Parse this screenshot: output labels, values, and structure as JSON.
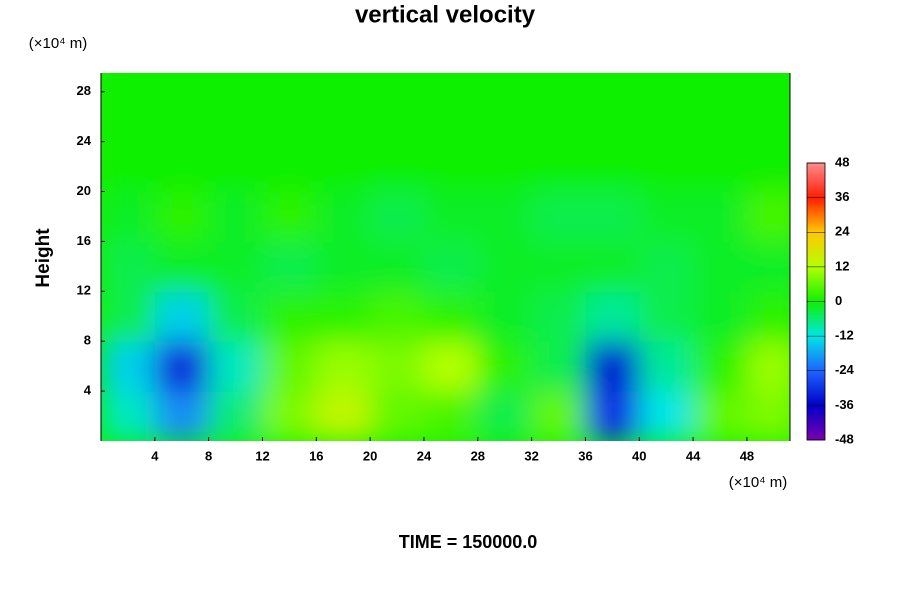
{
  "chart_data": {
    "type": "contour",
    "title": "vertical velocity",
    "y_label": "Height",
    "y_unit": "(×10⁴ m)",
    "x_unit": "(×10⁴ m)",
    "footer": "TIME = 150000.0",
    "xlim": [
      0,
      51.2
    ],
    "ylim": [
      0,
      29.5
    ],
    "xticks": [
      4,
      8,
      12,
      16,
      20,
      24,
      28,
      32,
      36,
      40,
      44,
      48
    ],
    "yticks": [
      4,
      8,
      12,
      16,
      20,
      24,
      28
    ],
    "x": [
      2,
      6,
      10,
      14,
      18,
      22,
      26,
      30,
      34,
      38,
      42,
      46,
      50
    ],
    "y": [
      2,
      6,
      10,
      14,
      18,
      22,
      26,
      30
    ],
    "z": [
      [
        -10,
        -20,
        -6,
        8,
        14,
        6,
        4,
        -4,
        6,
        -30,
        -12,
        6,
        8
      ],
      [
        -14,
        -32,
        -10,
        6,
        10,
        8,
        12,
        2,
        -4,
        -34,
        -8,
        2,
        10
      ],
      [
        -4,
        -14,
        -4,
        2,
        2,
        4,
        2,
        -2,
        -4,
        -8,
        -4,
        -2,
        2
      ],
      [
        -4,
        -2,
        -2,
        -4,
        -2,
        -2,
        -4,
        -2,
        -2,
        -2,
        -4,
        -2,
        -2
      ],
      [
        -2,
        2,
        -2,
        2,
        -2,
        -4,
        -2,
        -2,
        -4,
        -4,
        -2,
        -2,
        4
      ],
      [
        0,
        0,
        0,
        0,
        0,
        0,
        0,
        0,
        0,
        0,
        0,
        0,
        0
      ],
      [
        0,
        0,
        0,
        0,
        0,
        0,
        0,
        0,
        0,
        0,
        0,
        0,
        0
      ],
      [
        0,
        0,
        0,
        0,
        0,
        0,
        0,
        0,
        0,
        0,
        0,
        0,
        0
      ]
    ],
    "colorbar_ticks": [
      -48,
      -36,
      -24,
      -12,
      0,
      12,
      24,
      36,
      48
    ],
    "colorscale": [
      {
        "value": -48,
        "color": "#7a00b0"
      },
      {
        "value": -36,
        "color": "#0000c8"
      },
      {
        "value": -24,
        "color": "#1e64ff"
      },
      {
        "value": -12,
        "color": "#00e6e6"
      },
      {
        "value": 0,
        "color": "#10f000"
      },
      {
        "value": 12,
        "color": "#b4ff00"
      },
      {
        "value": 24,
        "color": "#ffc800"
      },
      {
        "value": 36,
        "color": "#ff1e00"
      },
      {
        "value": 48,
        "color": "#ff8c8c"
      }
    ]
  }
}
